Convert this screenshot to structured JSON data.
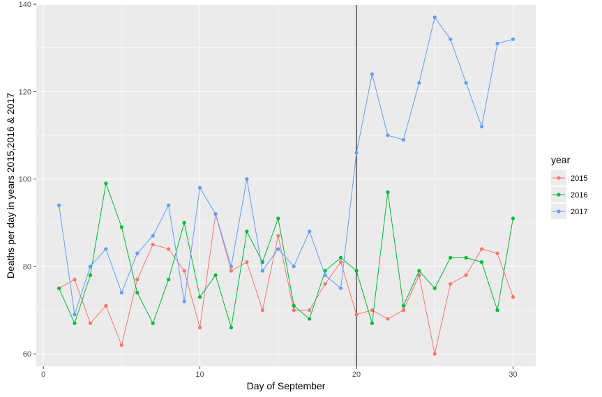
{
  "chart_data": {
    "type": "line",
    "xlabel": "Day of September",
    "ylabel": "Deaths per day in years 2015,2016 & 2017",
    "xlim": [
      -0.45,
      31.45
    ],
    "ylim": [
      57.15,
      139.85
    ],
    "x_ticks": [
      0,
      10,
      20,
      30
    ],
    "y_ticks": [
      60,
      80,
      100,
      120,
      140
    ],
    "vline_x": 20,
    "legend": {
      "title": "year",
      "position": "right"
    },
    "background": "#ebebeb",
    "grid": true,
    "series": [
      {
        "name": "2015",
        "color": "#f8766d",
        "x": [
          1,
          2,
          3,
          4,
          5,
          6,
          7,
          8,
          9,
          10,
          11,
          12,
          13,
          14,
          15,
          16,
          17,
          18,
          19,
          20,
          21,
          22,
          23,
          24,
          25,
          26,
          27,
          28,
          29,
          30
        ],
        "y": [
          75,
          77,
          67,
          71,
          62,
          77,
          85,
          84,
          79,
          66,
          92,
          79,
          81,
          70,
          87,
          70,
          70,
          76,
          81,
          69,
          70,
          68,
          70,
          78,
          60,
          76,
          78,
          84,
          83,
          73
        ]
      },
      {
        "name": "2016",
        "color": "#00ba38",
        "x": [
          1,
          2,
          3,
          4,
          5,
          6,
          7,
          8,
          9,
          10,
          11,
          12,
          13,
          14,
          15,
          16,
          17,
          18,
          19,
          20,
          21,
          22,
          23,
          24,
          25,
          26,
          27,
          28,
          29,
          30
        ],
        "y": [
          75,
          67,
          78,
          99,
          89,
          74,
          67,
          77,
          90,
          73,
          78,
          66,
          88,
          81,
          91,
          71,
          68,
          79,
          82,
          79,
          67,
          97,
          71,
          79,
          75,
          82,
          82,
          81,
          70,
          91
        ]
      },
      {
        "name": "2017",
        "color": "#619cff",
        "x": [
          1,
          2,
          3,
          4,
          5,
          6,
          7,
          8,
          9,
          10,
          11,
          12,
          13,
          14,
          15,
          16,
          17,
          18,
          19,
          20,
          21,
          22,
          23,
          24,
          25,
          26,
          27,
          28,
          29,
          30
        ],
        "y": [
          94,
          69,
          80,
          84,
          74,
          83,
          87,
          94,
          72,
          98,
          92,
          80,
          100,
          79,
          84,
          80,
          88,
          78,
          75,
          106,
          124,
          110,
          109,
          122,
          137,
          132,
          122,
          112,
          131,
          132
        ]
      }
    ]
  }
}
